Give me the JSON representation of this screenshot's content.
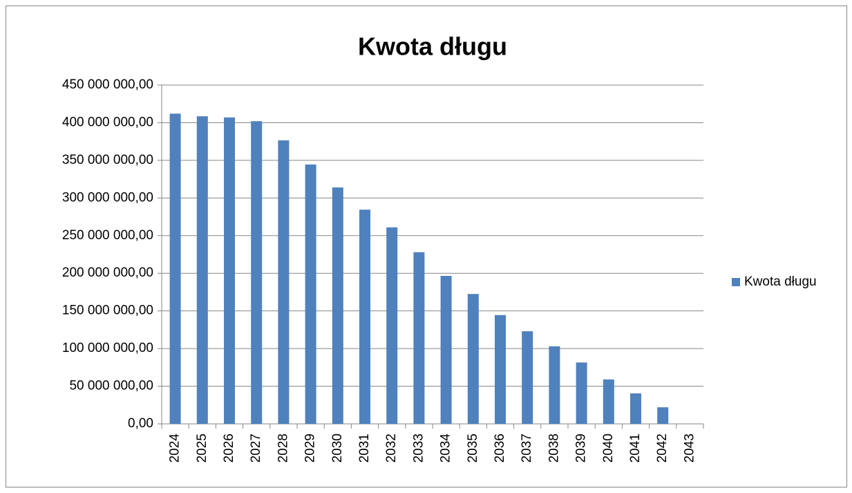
{
  "chart_data": {
    "type": "bar",
    "title": "Kwota długu",
    "categories": [
      "2024",
      "2025",
      "2026",
      "2027",
      "2028",
      "2029",
      "2030",
      "2031",
      "2032",
      "2033",
      "2034",
      "2035",
      "2036",
      "2037",
      "2038",
      "2039",
      "2040",
      "2041",
      "2042",
      "2043"
    ],
    "series": [
      {
        "name": "Kwota długu",
        "color": "#4f81bd",
        "values": [
          412000000,
          408500000,
          407000000,
          402000000,
          376500000,
          344500000,
          314000000,
          284500000,
          261000000,
          228000000,
          196500000,
          172500000,
          144500000,
          123000000,
          103000000,
          81500000,
          59000000,
          40500000,
          22000000,
          0
        ]
      }
    ],
    "ylim": [
      0,
      450000000
    ],
    "yticks": [
      {
        "value": 0,
        "label": "0,00"
      },
      {
        "value": 50000000,
        "label": "50 000 000,00"
      },
      {
        "value": 100000000,
        "label": "100 000 000,00"
      },
      {
        "value": 150000000,
        "label": "150 000 000,00"
      },
      {
        "value": 200000000,
        "label": "200 000 000,00"
      },
      {
        "value": 250000000,
        "label": "250 000 000,00"
      },
      {
        "value": 300000000,
        "label": "300 000 000,00"
      },
      {
        "value": 350000000,
        "label": "350 000 000,00"
      },
      {
        "value": 400000000,
        "label": "400 000 000,00"
      },
      {
        "value": 450000000,
        "label": "450 000 000,00"
      }
    ],
    "grid": true,
    "legend": "right"
  }
}
